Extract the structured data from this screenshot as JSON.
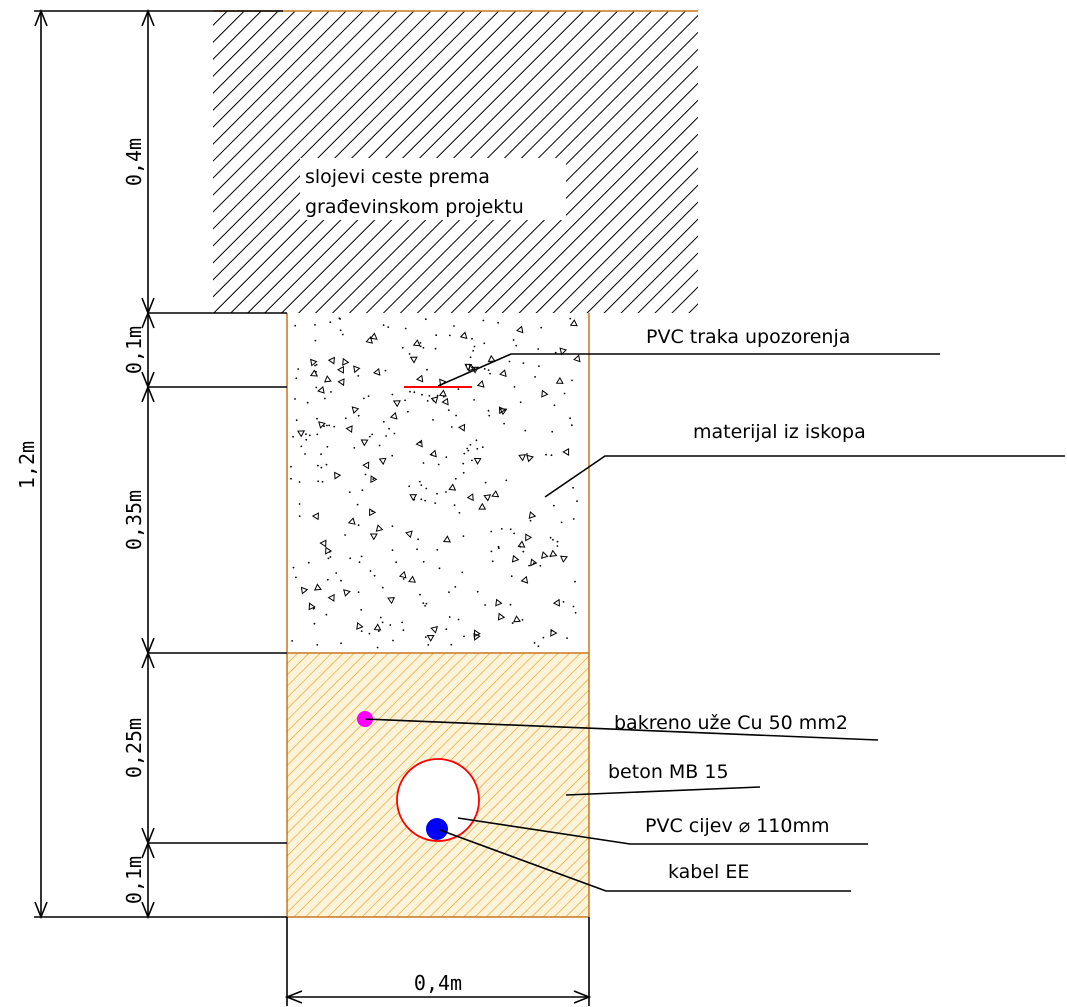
{
  "labels": {
    "road_layers_line1": "slojevi ceste prema",
    "road_layers_line2": "građevinskom projektu",
    "pvc_tape": "PVC traka upozorenja",
    "excavated_material": "materijal iz iskopa",
    "copper_rope": "bakreno uže Cu 50 mm2",
    "concrete": "beton MB 15",
    "pvc_pipe": "PVC cijev ⌀ 110mm",
    "cable": "kabel EE"
  },
  "dimensions": {
    "total_depth": "1,2m",
    "road_layer": "0,4m",
    "top_fill": "0,1m",
    "excavated_fill": "0,35m",
    "concrete_upper": "0,25m",
    "concrete_lower": "0,1m",
    "trench_width": "0,4m"
  },
  "colors": {
    "trench_outline": "#c8761e",
    "concrete_hatch": "#e0a030",
    "concrete_bg": "#fdf3d8",
    "road_hatch": "#000000",
    "tape": "#ff0000",
    "copper_rope": "#ff00ff",
    "pipe_outline": "#ff0000",
    "cable": "#0000ff"
  }
}
